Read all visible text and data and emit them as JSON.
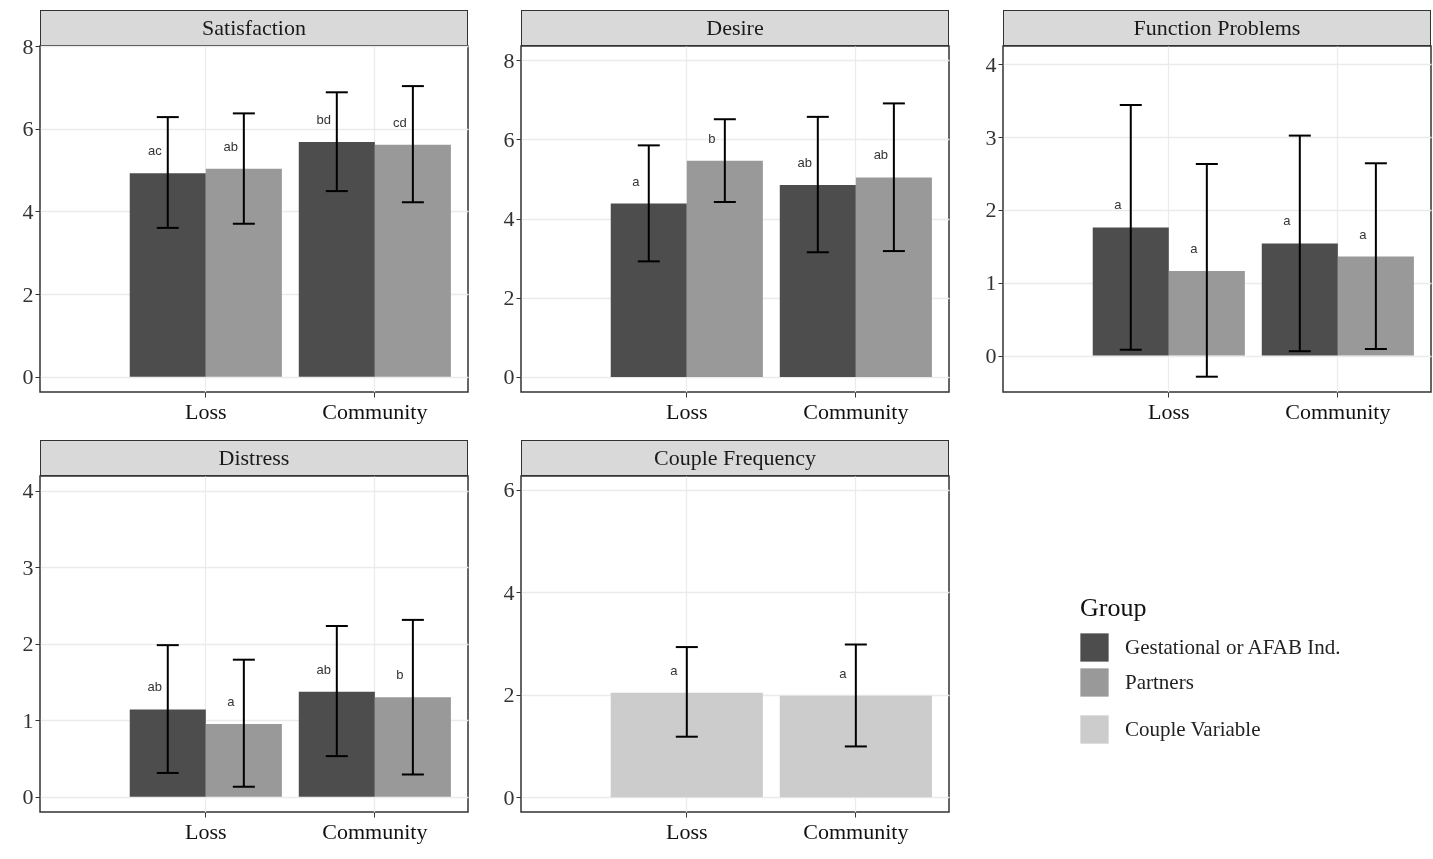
{
  "chart_data": [
    {
      "type": "bar",
      "title": "Satisfaction",
      "categories": [
        "Loss",
        "Community"
      ],
      "ylim": [
        -0.37,
        8.0
      ],
      "yticks": [
        0,
        2,
        4,
        6,
        8
      ],
      "grid": true,
      "legend": "right",
      "legend_title": "Group",
      "series": [
        {
          "name": "Gestational or AFAB Ind.",
          "color": "#4d4d4d",
          "values": [
            4.92,
            5.68
          ],
          "errors": [
            [
              3.6,
              6.28
            ],
            [
              4.49,
              6.88
            ]
          ],
          "value_labels": [
            "ac",
            "bd"
          ]
        },
        {
          "name": "Partners",
          "color": "#999999",
          "values": [
            5.03,
            5.61
          ],
          "errors": [
            [
              3.7,
              6.37
            ],
            [
              4.22,
              7.03
            ]
          ],
          "value_labels": [
            "ab",
            "cd"
          ]
        }
      ]
    },
    {
      "type": "bar",
      "title": "Desire",
      "categories": [
        "Loss",
        "Community"
      ],
      "ylim": [
        -0.38,
        8.36
      ],
      "yticks": [
        0,
        2,
        4,
        6,
        8
      ],
      "grid": true,
      "series": [
        {
          "color": "#4d4d4d",
          "values": [
            4.38,
            4.85
          ],
          "errors": [
            [
              2.92,
              5.85
            ],
            [
              3.15,
              6.57
            ]
          ],
          "value_labels": [
            "a",
            "ab"
          ]
        },
        {
          "color": "#999999",
          "values": [
            5.46,
            5.04
          ],
          "errors": [
            [
              4.42,
              6.51
            ],
            [
              3.18,
              6.91
            ]
          ],
          "value_labels": [
            "b",
            "ab"
          ]
        }
      ]
    },
    {
      "type": "bar",
      "title": "Function Problems",
      "categories": [
        "Loss",
        "Community"
      ],
      "ylim": [
        -0.5,
        4.25
      ],
      "yticks": [
        0,
        1,
        2,
        3,
        4
      ],
      "grid": true,
      "series": [
        {
          "color": "#4d4d4d",
          "values": [
            1.76,
            1.54
          ],
          "errors": [
            [
              0.08,
              3.44
            ],
            [
              0.06,
              3.02
            ]
          ],
          "value_labels": [
            "a",
            "a"
          ]
        },
        {
          "color": "#999999",
          "values": [
            1.16,
            1.36
          ],
          "errors": [
            [
              -0.29,
              2.63
            ],
            [
              0.09,
              2.64
            ]
          ],
          "value_labels": [
            "a",
            "a"
          ]
        }
      ]
    },
    {
      "type": "bar",
      "title": "Distress",
      "categories": [
        "Loss",
        "Community"
      ],
      "ylim": [
        -0.2,
        4.19
      ],
      "yticks": [
        0,
        1,
        2,
        3,
        4
      ],
      "grid": true,
      "series": [
        {
          "color": "#4d4d4d",
          "values": [
            1.14,
            1.37
          ],
          "errors": [
            [
              0.31,
              1.98
            ],
            [
              0.53,
              2.23
            ]
          ],
          "value_labels": [
            "ab",
            "ab"
          ]
        },
        {
          "color": "#999999",
          "values": [
            0.95,
            1.3
          ],
          "errors": [
            [
              0.13,
              1.79
            ],
            [
              0.29,
              2.31
            ]
          ],
          "value_labels": [
            "a",
            "b"
          ]
        }
      ]
    },
    {
      "type": "bar",
      "title": "Couple Frequency",
      "categories": [
        "Loss",
        "Community"
      ],
      "ylim": [
        -0.29,
        6.27
      ],
      "yticks": [
        0,
        2,
        4,
        6
      ],
      "grid": true,
      "legend": "right",
      "series": [
        {
          "name": "Couple Variable",
          "color": "#cccccc",
          "values": [
            2.04,
            1.98
          ],
          "errors": [
            [
              1.18,
              2.93
            ],
            [
              0.99,
              2.98
            ]
          ],
          "value_labels": [
            "a",
            "a"
          ]
        }
      ]
    }
  ]
}
